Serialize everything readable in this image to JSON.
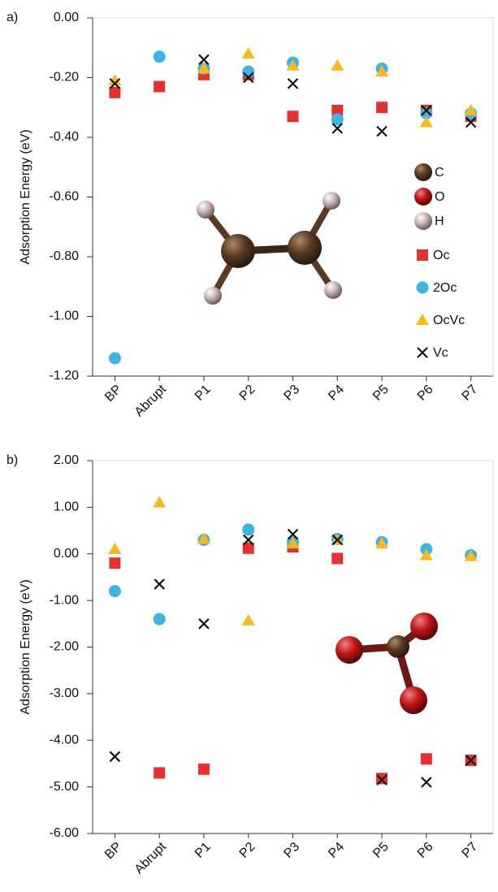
{
  "chart_data": [
    {
      "type": "scatter",
      "label": "a)",
      "y_label": "Adsorption Energy (eV)",
      "categories": [
        "BP",
        "Abrupt",
        "P1",
        "P2",
        "P3",
        "P4",
        "P5",
        "P6",
        "P7"
      ],
      "ylim": [
        -1.2,
        0
      ],
      "yticks": [
        {
          "value": -1.2,
          "label": "-1.20"
        },
        {
          "value": -1,
          "label": "-1.00"
        },
        {
          "value": -0.8,
          "label": "-0.80"
        },
        {
          "value": -0.6,
          "label": "-0.60"
        },
        {
          "value": -0.4,
          "label": "-0.40"
        },
        {
          "value": -0.2,
          "label": "-0.20"
        },
        {
          "value": 0,
          "label": "0.00"
        }
      ],
      "legend": true,
      "atom_legend": [
        {
          "name": "C",
          "color": "#5a3a22"
        },
        {
          "name": "O",
          "color": "#d01818"
        },
        {
          "name": "H",
          "color": "#e8cfcf"
        }
      ],
      "series": [
        {
          "name": "Oc",
          "color": "#e8312f",
          "marker": "square",
          "values": [
            -0.25,
            -0.23,
            -0.19,
            -0.19,
            -0.33,
            -0.31,
            -0.3,
            -0.31,
            -0.33
          ]
        },
        {
          "name": "2Oc",
          "color": "#3cb4e5",
          "marker": "circle",
          "values": [
            -1.14,
            -0.13,
            -0.17,
            -0.18,
            -0.15,
            -0.34,
            -0.17,
            -0.32,
            -0.32
          ]
        },
        {
          "name": "OcVc",
          "color": "#f7b91c",
          "marker": "triangle",
          "values": [
            -0.21,
            null,
            -0.17,
            -0.12,
            -0.16,
            -0.16,
            -0.18,
            -0.35,
            -0.31
          ]
        },
        {
          "name": "Vc",
          "color": "#111111",
          "marker": "x",
          "values": [
            -0.22,
            null,
            -0.14,
            -0.2,
            -0.22,
            -0.37,
            -0.38,
            -0.31,
            -0.35
          ]
        }
      ]
    },
    {
      "type": "scatter",
      "label": "b)",
      "y_label": "Adsorption Energy (eV)",
      "categories": [
        "BP",
        "Abrupt",
        "P1",
        "P2",
        "P3",
        "P4",
        "P5",
        "P6",
        "P7"
      ],
      "ylim": [
        -6,
        2
      ],
      "yticks": [
        {
          "value": -6,
          "label": "-6.00"
        },
        {
          "value": -5,
          "label": "-5.00"
        },
        {
          "value": -4,
          "label": "-4.00"
        },
        {
          "value": -3,
          "label": "-3.00"
        },
        {
          "value": -2,
          "label": "-2.00"
        },
        {
          "value": -1,
          "label": "-1.00"
        },
        {
          "value": 0,
          "label": "0.00"
        },
        {
          "value": 1,
          "label": "1.00"
        },
        {
          "value": 2,
          "label": "2.00"
        }
      ],
      "legend": false,
      "series": [
        {
          "color": "#e8312f",
          "marker": "square",
          "values": [
            -0.2,
            -4.7,
            -4.62,
            0.12,
            0.15,
            -0.1,
            -4.82,
            -4.4,
            -4.43
          ]
        },
        {
          "color": "#3cb4e5",
          "marker": "circle",
          "values": [
            -0.8,
            -1.4,
            0.3,
            0.52,
            0.25,
            0.32,
            0.25,
            0.1,
            -0.03
          ]
        },
        {
          "color": "#f7b91c",
          "marker": "triangle",
          "values": [
            0.1,
            1.1,
            0.32,
            -1.43,
            0.22,
            0.3,
            0.22,
            -0.03,
            -0.05
          ]
        },
        {
          "color": "#111111",
          "marker": "x",
          "values": [
            -4.35,
            -0.65,
            -1.5,
            0.3,
            0.42,
            0.3,
            -4.85,
            -4.9,
            -4.43
          ]
        }
      ]
    }
  ]
}
